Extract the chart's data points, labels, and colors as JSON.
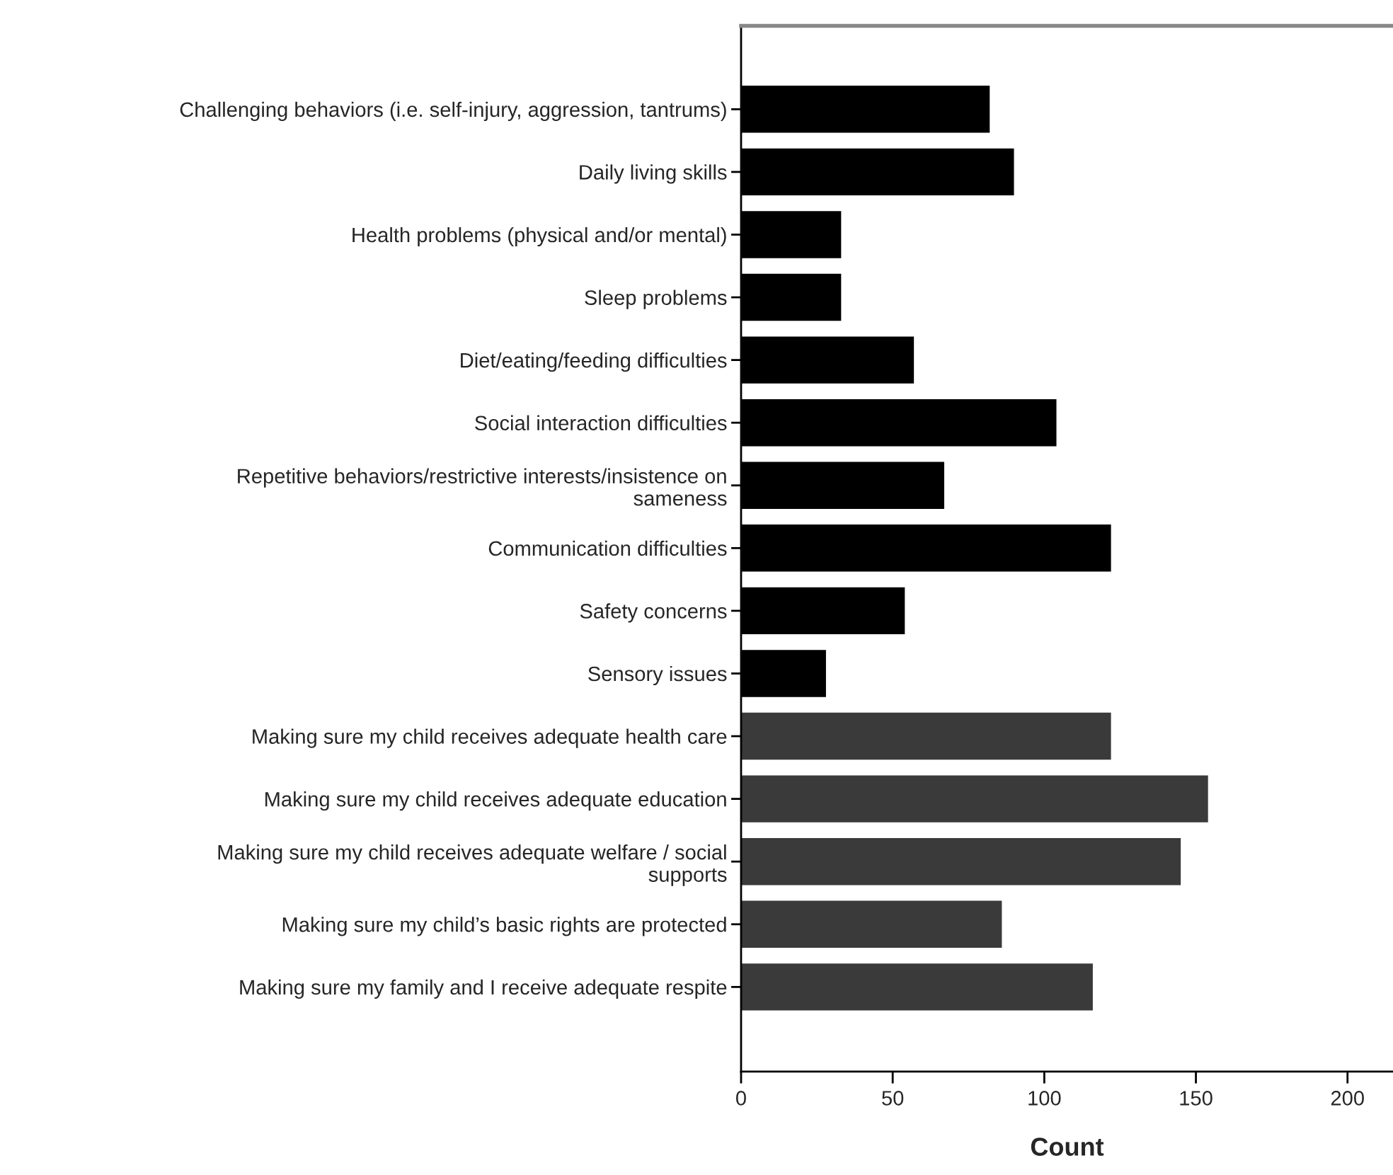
{
  "chart_data": {
    "type": "bar",
    "orientation": "horizontal",
    "xlabel": "Count",
    "categories": [
      "Challenging behaviors (i.e. self-injury, aggression, tantrums)",
      "Daily living skills",
      "Health problems (physical and/or mental)",
      "Sleep problems",
      "Diet/eating/feeding difficulties",
      "Social interaction difficulties",
      "Repetitive behaviors/restrictive interests/insistence on\nsameness",
      "Communication difficulties",
      "Safety concerns",
      "Sensory issues",
      "Making sure my child receives adequate health care",
      "Making sure my child receives adequate education",
      "Making sure my child receives adequate welfare / social\nsupports",
      "Making sure my child’s basic rights are protected",
      "Making sure my family and I receive adequate respite"
    ],
    "values": [
      82,
      90,
      33,
      33,
      57,
      104,
      67,
      122,
      54,
      28,
      122,
      154,
      145,
      86,
      116
    ],
    "colors": [
      "#000000",
      "#000000",
      "#000000",
      "#000000",
      "#000000",
      "#000000",
      "#000000",
      "#000000",
      "#000000",
      "#000000",
      "#3a3a3a",
      "#3a3a3a",
      "#3a3a3a",
      "#3a3a3a",
      "#3a3a3a"
    ],
    "xlim": [
      0,
      215
    ],
    "xticks": [
      0,
      50,
      100,
      150,
      200
    ],
    "grid": false,
    "legend": false
  }
}
